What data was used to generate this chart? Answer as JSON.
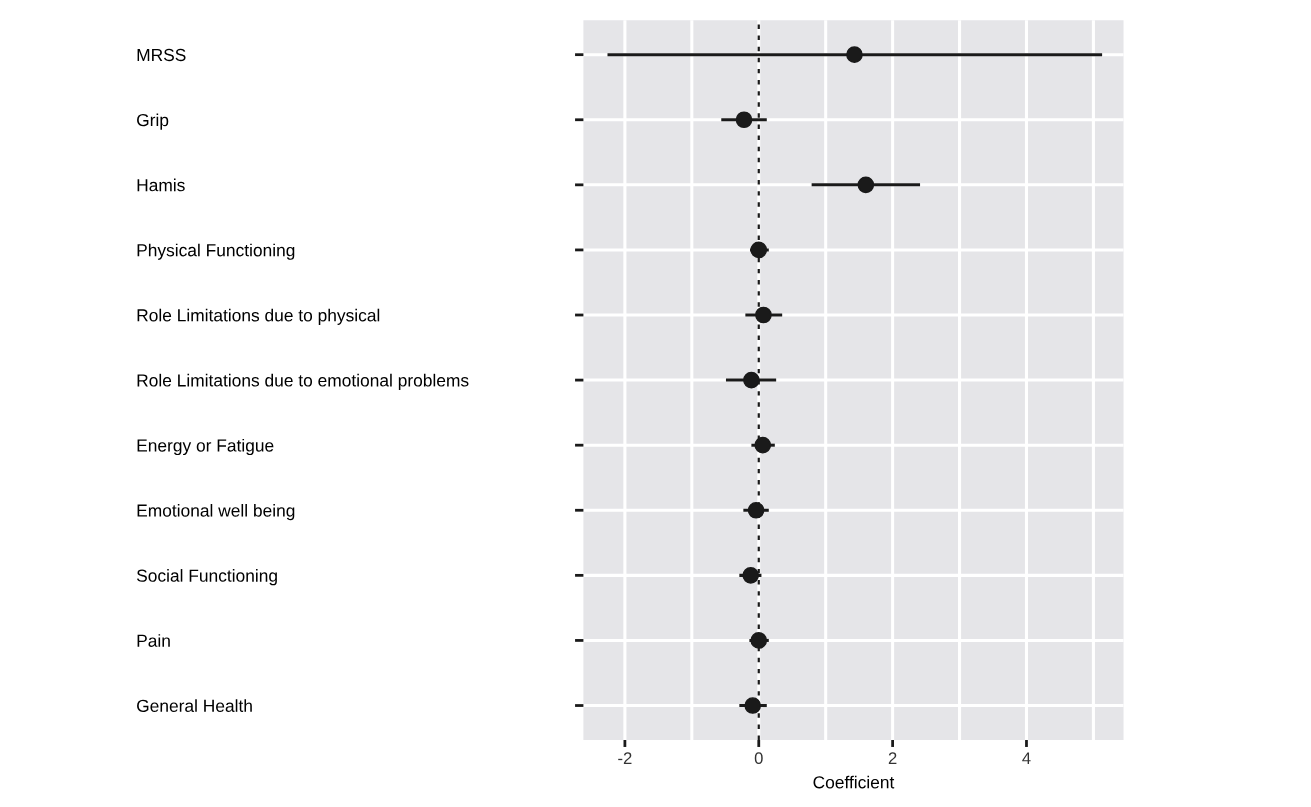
{
  "chart_data": {
    "type": "scatter",
    "orientation": "horizontal",
    "xlabel": "Coefficient",
    "categories": [
      "MRSS",
      "Grip",
      "Hamis",
      "Physical Functioning",
      "Role Limitations due to physical",
      "Role Limitations due to emotional problems",
      "Energy or Fatigue",
      "Emotional well being",
      "Social Functioning",
      "Pain",
      "General Health"
    ],
    "color": "#1a1a1a",
    "values": [
      1.43,
      -0.22,
      1.6,
      0.0,
      0.07,
      -0.11,
      0.06,
      -0.04,
      -0.12,
      0.0,
      -0.09
    ],
    "errors": [
      [
        -2.26,
        5.13
      ],
      [
        -0.56,
        0.12
      ],
      [
        0.79,
        2.41
      ],
      [
        -0.13,
        0.15
      ],
      [
        -0.2,
        0.35
      ],
      [
        -0.49,
        0.26
      ],
      [
        -0.11,
        0.24
      ],
      [
        -0.23,
        0.15
      ],
      [
        -0.29,
        0.04
      ],
      [
        -0.14,
        0.15
      ],
      [
        -0.29,
        0.12
      ]
    ],
    "xlim": [
      -2.62,
      5.45
    ],
    "xticks": [
      -2,
      {
        "value": -1,
        "label": null
      },
      0,
      {
        "value": 1,
        "label": null
      },
      2,
      {
        "value": 3,
        "label": null
      },
      4,
      {
        "value": 5,
        "label": null
      }
    ],
    "ref_lines": [
      {
        "axis": "x",
        "value": 0,
        "line_style": "dotted",
        "color": "#1a1a1a"
      }
    ],
    "grid": true,
    "marker": "circle"
  }
}
